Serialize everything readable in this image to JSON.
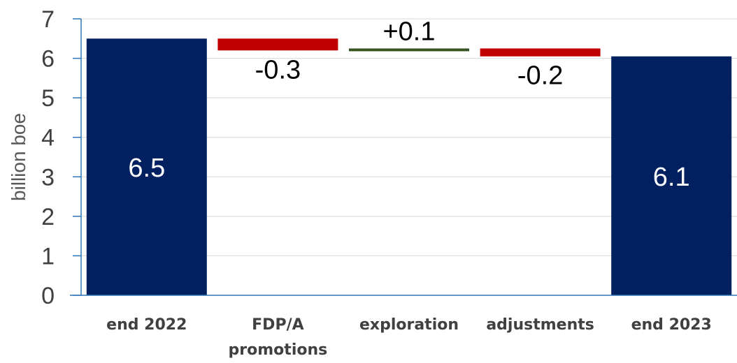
{
  "chart_data": {
    "type": "bar",
    "subtype": "waterfall",
    "ylabel": "billion boe",
    "ylim": [
      0,
      7
    ],
    "yticks": [
      "0",
      "1",
      "2",
      "3",
      "4",
      "5",
      "6",
      "7"
    ],
    "grid": true,
    "categories": [
      {
        "lines": [
          "end 2022"
        ]
      },
      {
        "lines": [
          "FDP/A",
          "promotions"
        ]
      },
      {
        "lines": [
          "exploration"
        ]
      },
      {
        "lines": [
          "adjustments"
        ]
      },
      {
        "lines": [
          "end 2023"
        ]
      }
    ],
    "steps": [
      {
        "kind": "total",
        "start": 0,
        "end": 6.5,
        "label": "6.5",
        "color": "#002060"
      },
      {
        "kind": "decrease",
        "start": 6.5,
        "end": 6.2,
        "label": "-0.3",
        "color": "#c00000"
      },
      {
        "kind": "increase",
        "start": 6.2,
        "end": 6.25,
        "label": "+0.1",
        "color": "#375623"
      },
      {
        "kind": "decrease",
        "start": 6.25,
        "end": 6.05,
        "label": "-0.2",
        "color": "#c00000"
      },
      {
        "kind": "total",
        "start": 0,
        "end": 6.05,
        "label": "6.1",
        "color": "#002060"
      }
    ],
    "axis_color": "#2e75b6",
    "grid_color": "#d9d9d9",
    "label_color_total": "#ffffff",
    "label_color_change": "#000000"
  }
}
